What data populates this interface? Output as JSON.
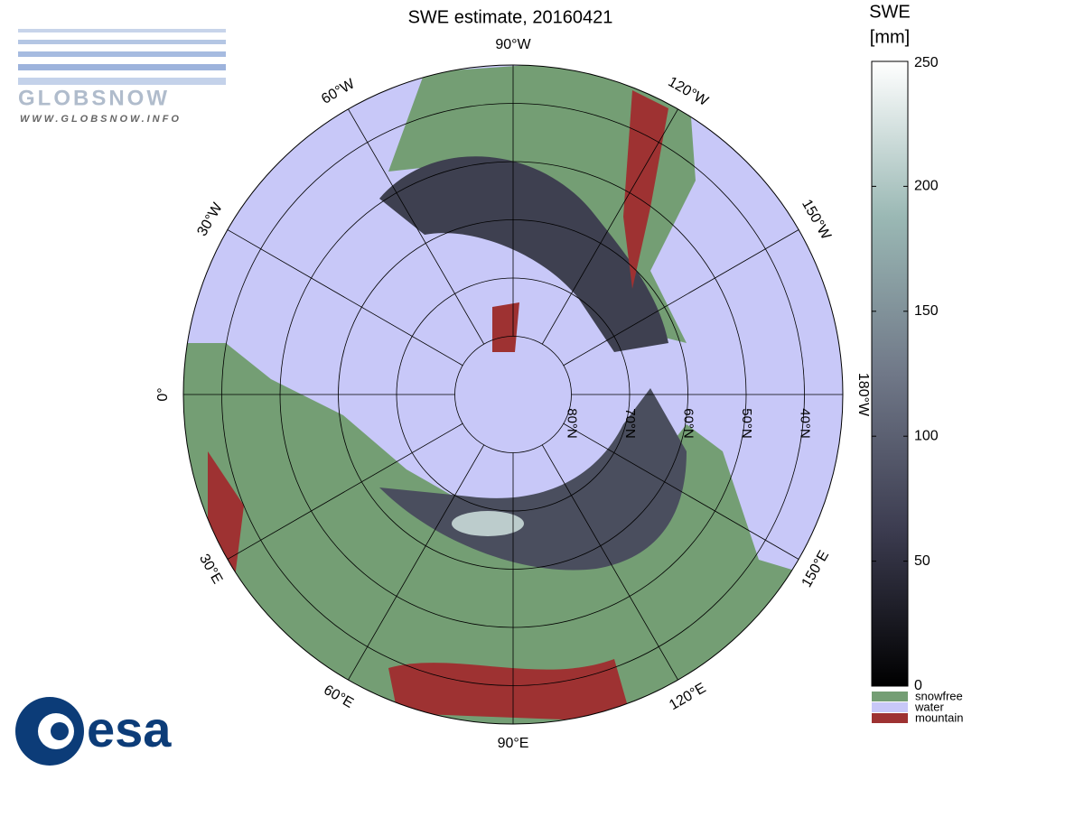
{
  "title": "SWE estimate, 20160421",
  "logo_top": {
    "name": "GLOBSNOW",
    "url": "WWW.GLOBSNOW.INFO"
  },
  "logo_bottom": {
    "name": "esa"
  },
  "meridians": [
    {
      "value": 0,
      "label": "0°"
    },
    {
      "value": -30,
      "label": "30°W"
    },
    {
      "value": -60,
      "label": "60°W"
    },
    {
      "value": -90,
      "label": "90°W"
    },
    {
      "value": -120,
      "label": "120°W"
    },
    {
      "value": -150,
      "label": "150°W"
    },
    {
      "value": -180,
      "label": "180°W"
    },
    {
      "value": 30,
      "label": "30°E"
    },
    {
      "value": 60,
      "label": "60°E"
    },
    {
      "value": 90,
      "label": "90°E"
    },
    {
      "value": 120,
      "label": "120°E"
    },
    {
      "value": 150,
      "label": "150°E"
    }
  ],
  "parallels": [
    {
      "value": 80,
      "label": "80°N"
    },
    {
      "value": 70,
      "label": "70°N"
    },
    {
      "value": 60,
      "label": "60°N"
    },
    {
      "value": 50,
      "label": "50°N"
    },
    {
      "value": 40,
      "label": "40°N"
    }
  ],
  "colorbar": {
    "title": [
      "SWE",
      "[mm]"
    ],
    "lim": [
      0,
      250
    ],
    "ticks": [
      0,
      50,
      100,
      150,
      200,
      250
    ],
    "classes": [
      {
        "name": "snowfree",
        "color": "#749e74"
      },
      {
        "name": "water",
        "color": "#c8c8f8"
      },
      {
        "name": "mountain",
        "color": "#9e3232"
      }
    ]
  }
}
